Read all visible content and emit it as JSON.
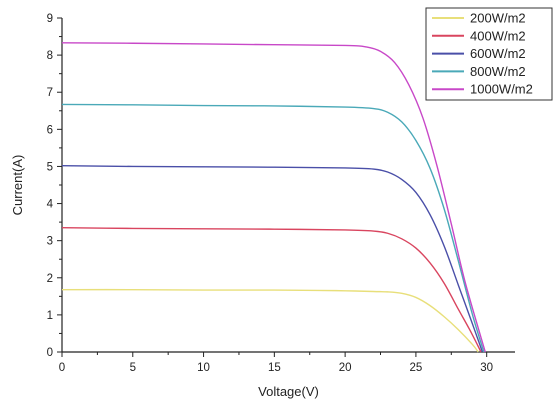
{
  "chart_data": {
    "type": "line",
    "xlabel": "Voltage(V)",
    "ylabel": "Current(A)",
    "xlim": [
      0,
      32
    ],
    "ylim": [
      0,
      9
    ],
    "x_ticks": [
      0,
      5,
      10,
      15,
      20,
      25,
      30
    ],
    "y_ticks": [
      0,
      1,
      2,
      3,
      4,
      5,
      6,
      7,
      8,
      9
    ],
    "grid": false,
    "legend_position": "top-right",
    "series": [
      {
        "name": "200W/m2",
        "color": "#e8df7a",
        "x": [
          0,
          5,
          10,
          15,
          18,
          20,
          22,
          23,
          24,
          25,
          26,
          27,
          28,
          29,
          29.4
        ],
        "y": [
          1.68,
          1.68,
          1.67,
          1.67,
          1.66,
          1.65,
          1.63,
          1.62,
          1.58,
          1.47,
          1.25,
          0.95,
          0.6,
          0.2,
          0
        ]
      },
      {
        "name": "400W/m2",
        "color": "#d9455f",
        "x": [
          0,
          5,
          10,
          15,
          20,
          22,
          23,
          24,
          25,
          26,
          27,
          28,
          28.8,
          29.6
        ],
        "y": [
          3.35,
          3.33,
          3.32,
          3.31,
          3.29,
          3.26,
          3.2,
          3.05,
          2.8,
          2.4,
          1.85,
          1.15,
          0.6,
          0
        ]
      },
      {
        "name": "600W/m2",
        "color": "#4a4fa8",
        "x": [
          0,
          5,
          10,
          15,
          20,
          22,
          23,
          24,
          25,
          26,
          27,
          28,
          29,
          29.7
        ],
        "y": [
          5.02,
          5.0,
          4.99,
          4.98,
          4.96,
          4.93,
          4.85,
          4.65,
          4.3,
          3.7,
          2.85,
          1.8,
          0.75,
          0
        ]
      },
      {
        "name": "800W/m2",
        "color": "#4aa9b8",
        "x": [
          0,
          5,
          10,
          15,
          20,
          22,
          23,
          24,
          25,
          26,
          27,
          28,
          29,
          29.8
        ],
        "y": [
          6.67,
          6.66,
          6.64,
          6.63,
          6.6,
          6.56,
          6.46,
          6.2,
          5.7,
          4.95,
          3.85,
          2.45,
          1.0,
          0
        ]
      },
      {
        "name": "1000W/m2",
        "color": "#c848c8",
        "x": [
          0,
          5,
          10,
          15,
          20,
          21.5,
          22.5,
          23.5,
          24.5,
          25.5,
          26.5,
          27.5,
          28.5,
          29.9
        ],
        "y": [
          8.33,
          8.32,
          8.3,
          8.28,
          8.26,
          8.22,
          8.1,
          7.8,
          7.2,
          6.3,
          5.0,
          3.45,
          1.85,
          0
        ]
      }
    ]
  }
}
